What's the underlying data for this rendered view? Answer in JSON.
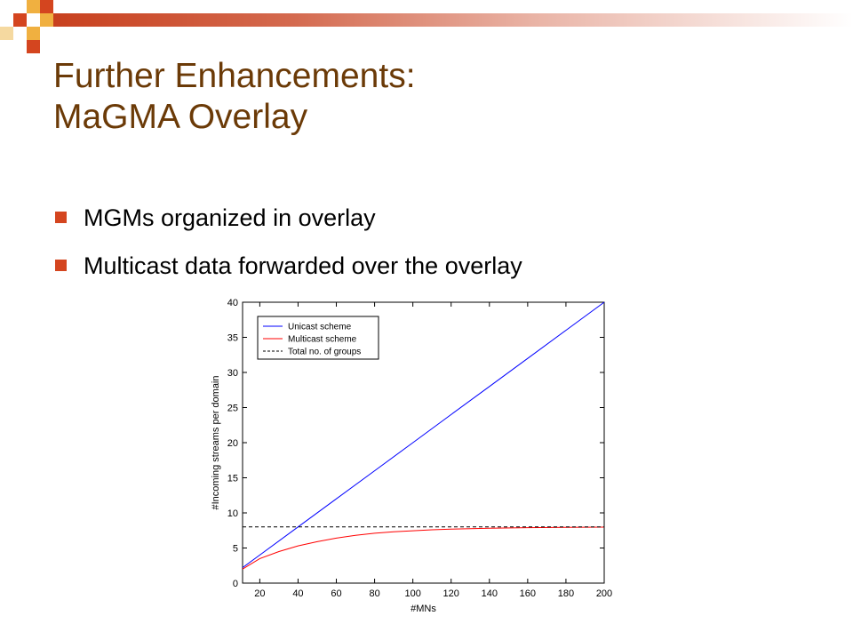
{
  "slide": {
    "title_line1": "Further Enhancements:",
    "title_line2": "MaGMA Overlay",
    "bullets": [
      "MGMs organized in overlay",
      "Multicast data forwarded over the overlay"
    ],
    "accent_color": "#d4451f",
    "title_color": "#6b3a07"
  },
  "chart_data": {
    "type": "line",
    "xlabel": "#MNs",
    "ylabel": "#Incoming streams per domain",
    "xlim": [
      11,
      200
    ],
    "ylim": [
      0,
      40
    ],
    "xticks": [
      20,
      40,
      60,
      80,
      100,
      120,
      140,
      160,
      180,
      200
    ],
    "yticks": [
      0,
      5,
      10,
      15,
      20,
      25,
      30,
      35,
      40
    ],
    "legend_position": "top-left",
    "grid": false,
    "series": [
      {
        "name": "Unicast scheme",
        "color": "#0000ff",
        "style": "solid",
        "x": [
          11,
          20,
          40,
          60,
          80,
          100,
          120,
          140,
          160,
          180,
          200
        ],
        "y": [
          2.2,
          4,
          8,
          12,
          16,
          20,
          24,
          28,
          32,
          36,
          40
        ]
      },
      {
        "name": "Multicast scheme",
        "color": "#ff0000",
        "style": "solid",
        "x": [
          11,
          20,
          30,
          40,
          50,
          60,
          70,
          80,
          90,
          100,
          110,
          120,
          140,
          160,
          180,
          200
        ],
        "y": [
          2.0,
          3.5,
          4.5,
          5.3,
          5.9,
          6.4,
          6.8,
          7.1,
          7.3,
          7.45,
          7.6,
          7.7,
          7.82,
          7.9,
          7.95,
          7.98
        ]
      },
      {
        "name": "Total no. of groups",
        "color": "#000000",
        "style": "dashed",
        "x": [
          11,
          200
        ],
        "y": [
          8,
          8
        ]
      }
    ]
  }
}
